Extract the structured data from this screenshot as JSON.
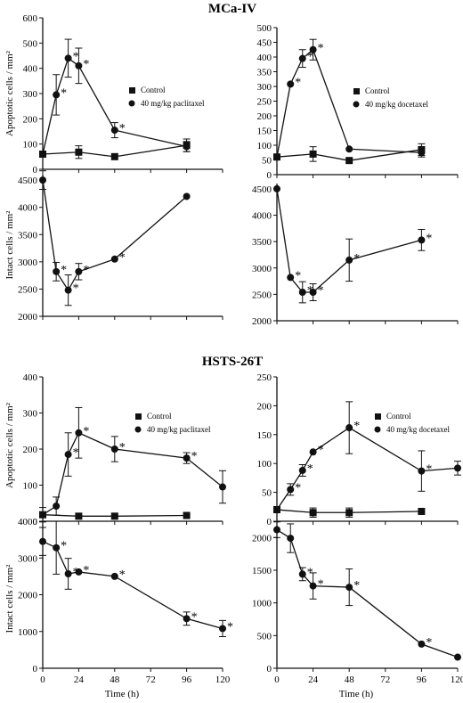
{
  "sections": [
    {
      "title": "MCa-IV"
    },
    {
      "title": "HSTS-26T"
    }
  ],
  "xaxis": {
    "label": "Time (h)",
    "ticks": [
      0,
      24,
      48,
      72,
      96,
      120
    ],
    "range": [
      0,
      120
    ]
  },
  "chart_data": [
    {
      "type": "line",
      "panel": "MCa-IV apoptotic paclitaxel",
      "ylabel": "Apoptotic cells / mm²",
      "ylim": [
        0,
        600
      ],
      "yticks": [
        0,
        100,
        200,
        300,
        400,
        500,
        600
      ],
      "legend": {
        "placement": "right",
        "entries": [
          "Control",
          "40 mg/kg paclitaxel"
        ]
      },
      "series": [
        {
          "name": "Control",
          "marker": "square",
          "x": [
            0,
            24,
            48,
            96
          ],
          "y": [
            60,
            68,
            50,
            95
          ],
          "err": [
            0,
            25,
            0,
            25
          ],
          "sig": [
            false,
            false,
            false,
            false
          ]
        },
        {
          "name": "40 mg/kg paclitaxel",
          "marker": "circle",
          "x": [
            0,
            9,
            17,
            24,
            48,
            96
          ],
          "y": [
            60,
            295,
            440,
            410,
            155,
            90
          ],
          "err": [
            0,
            80,
            75,
            70,
            30,
            20
          ],
          "sig": [
            false,
            true,
            true,
            true,
            true,
            false
          ]
        }
      ]
    },
    {
      "type": "line",
      "panel": "MCa-IV apoptotic docetaxel",
      "ylim": [
        0,
        500
      ],
      "yticks": [
        0,
        50,
        100,
        150,
        200,
        250,
        300,
        350,
        400,
        450,
        500
      ],
      "legend": {
        "placement": "right",
        "entries": [
          "Control",
          "40 mg/kg docetaxel"
        ]
      },
      "series": [
        {
          "name": "Control",
          "marker": "square",
          "x": [
            0,
            24,
            48,
            96
          ],
          "y": [
            60,
            70,
            48,
            85
          ],
          "err": [
            0,
            25,
            0,
            20
          ],
          "sig": [
            false,
            false,
            false,
            false
          ]
        },
        {
          "name": "40 mg/kg docetaxel",
          "marker": "circle",
          "x": [
            0,
            9,
            17,
            24,
            48,
            96
          ],
          "y": [
            60,
            308,
            395,
            425,
            87,
            75
          ],
          "err": [
            0,
            0,
            30,
            35,
            0,
            15
          ],
          "sig": [
            false,
            true,
            true,
            true,
            false,
            false
          ]
        }
      ]
    },
    {
      "type": "line",
      "panel": "MCa-IV intact paclitaxel",
      "ylabel": "Intact cells / mm²",
      "ylim": [
        2000,
        4600
      ],
      "yticks": [
        2000,
        2500,
        3000,
        3500,
        4000,
        4500
      ],
      "series": [
        {
          "name": "",
          "marker": "circle",
          "x": [
            0,
            9,
            17,
            24,
            48,
            96
          ],
          "y": [
            4500,
            2820,
            2480,
            2820,
            3050,
            4200
          ],
          "err": [
            170,
            170,
            280,
            150,
            0,
            0
          ],
          "sig": [
            false,
            true,
            true,
            true,
            true,
            false
          ]
        }
      ]
    },
    {
      "type": "line",
      "panel": "MCa-IV intact docetaxel",
      "ylim": [
        2000,
        4600
      ],
      "yticks": [
        2000,
        2500,
        3000,
        3500,
        4000,
        4500
      ],
      "series": [
        {
          "name": "",
          "marker": "circle",
          "x": [
            0,
            9,
            17,
            24,
            48,
            96
          ],
          "y": [
            4500,
            2820,
            2540,
            2540,
            3150,
            3530
          ],
          "err": [
            0,
            0,
            200,
            160,
            400,
            200
          ],
          "sig": [
            false,
            true,
            true,
            true,
            true,
            true
          ]
        }
      ]
    },
    {
      "type": "line",
      "panel": "HSTS-26T apoptotic paclitaxel",
      "ylabel": "Apoptotic cells / mm²",
      "ylim": [
        0,
        400
      ],
      "yticks": [
        0,
        100,
        200,
        300,
        400
      ],
      "legend": {
        "placement": "right",
        "entries": [
          "Control",
          "40 mg/kg paclitaxel"
        ]
      },
      "series": [
        {
          "name": "Control",
          "marker": "square",
          "x": [
            0,
            24,
            48,
            96
          ],
          "y": [
            18,
            14,
            14,
            16
          ],
          "err": [
            0,
            0,
            0,
            0
          ],
          "sig": [
            false,
            false,
            false,
            false
          ]
        },
        {
          "name": "40 mg/kg paclitaxel",
          "marker": "circle",
          "x": [
            0,
            9,
            17,
            24,
            48,
            96,
            120
          ],
          "y": [
            18,
            42,
            185,
            245,
            200,
            175,
            95
          ],
          "err": [
            20,
            25,
            60,
            70,
            35,
            15,
            45
          ],
          "sig": [
            false,
            false,
            true,
            true,
            true,
            true,
            false
          ]
        }
      ]
    },
    {
      "type": "line",
      "panel": "HSTS-26T apoptotic docetaxel",
      "ylim": [
        0,
        250
      ],
      "yticks": [
        0,
        50,
        100,
        150,
        200,
        250
      ],
      "legend": {
        "placement": "right",
        "entries": [
          "Control",
          "40 mg/kg docetaxel"
        ]
      },
      "series": [
        {
          "name": "Control",
          "marker": "square",
          "x": [
            0,
            24,
            48,
            96
          ],
          "y": [
            20,
            15,
            15,
            17
          ],
          "err": [
            5,
            8,
            8,
            0
          ],
          "sig": [
            false,
            false,
            false,
            false
          ]
        },
        {
          "name": "40 mg/kg docetaxel",
          "marker": "circle",
          "x": [
            0,
            9,
            17,
            24,
            48,
            96,
            120
          ],
          "y": [
            20,
            55,
            88,
            120,
            162,
            87,
            92
          ],
          "err": [
            0,
            10,
            10,
            0,
            45,
            35,
            12
          ],
          "sig": [
            false,
            true,
            true,
            true,
            true,
            true,
            true
          ]
        }
      ]
    },
    {
      "type": "line",
      "panel": "HSTS-26T intact paclitaxel",
      "ylabel": "Intact cells / mm²",
      "ylim": [
        0,
        4000
      ],
      "yticks": [
        0,
        1000,
        2000,
        3000,
        4000
      ],
      "series": [
        {
          "name": "",
          "marker": "circle",
          "x": [
            0,
            9,
            17,
            24,
            48,
            96,
            120
          ],
          "y": [
            3450,
            3280,
            2570,
            2620,
            2500,
            1350,
            1080
          ],
          "err": [
            380,
            720,
            420,
            0,
            0,
            180,
            220
          ],
          "sig": [
            false,
            true,
            true,
            true,
            true,
            true,
            true
          ]
        }
      ]
    },
    {
      "type": "line",
      "panel": "HSTS-26T intact docetaxel",
      "ylim": [
        0,
        2250
      ],
      "yticks": [
        0,
        500,
        1000,
        1500,
        2000
      ],
      "series": [
        {
          "name": "",
          "marker": "circle",
          "x": [
            0,
            9,
            17,
            24,
            48,
            96,
            120
          ],
          "y": [
            2120,
            1990,
            1440,
            1260,
            1240,
            370,
            170
          ],
          "err": [
            120,
            220,
            100,
            200,
            280,
            0,
            0
          ],
          "sig": [
            false,
            false,
            true,
            true,
            true,
            true,
            true
          ]
        }
      ]
    }
  ]
}
